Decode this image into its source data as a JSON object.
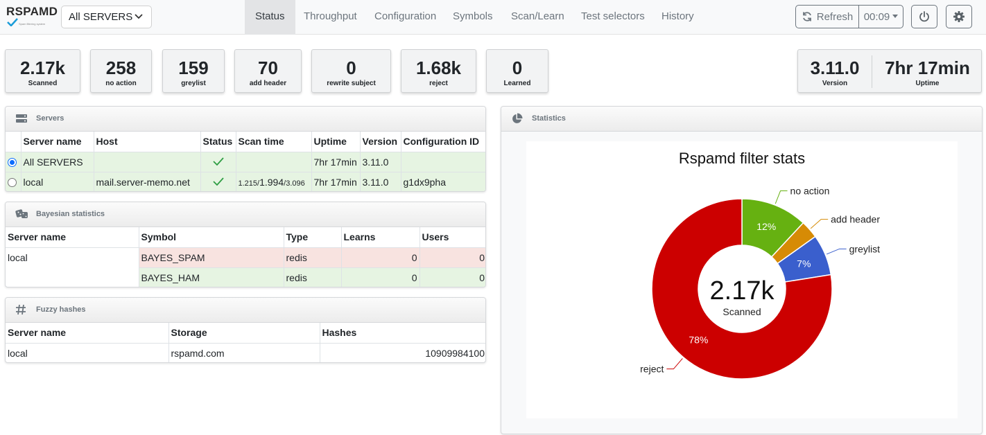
{
  "navbar": {
    "logo_text": "RSPAMD",
    "logo_subtitle": "Spam filtering system",
    "server_selector": "All SERVERS",
    "tabs": [
      {
        "label": "Status",
        "active": true
      },
      {
        "label": "Throughput",
        "active": false
      },
      {
        "label": "Configuration",
        "active": false
      },
      {
        "label": "Symbols",
        "active": false
      },
      {
        "label": "Scan/Learn",
        "active": false
      },
      {
        "label": "Test selectors",
        "active": false
      },
      {
        "label": "History",
        "active": false
      }
    ],
    "refresh_label": "Refresh",
    "timer_value": "00:09",
    "icons": [
      "refresh-icon",
      "caret-down-icon",
      "power-icon",
      "gear-icon"
    ]
  },
  "stats": [
    {
      "value": "2.17k",
      "label": "Scanned"
    },
    {
      "value": "258",
      "label": "no action"
    },
    {
      "value": "159",
      "label": "greylist"
    },
    {
      "value": "70",
      "label": "add header"
    },
    {
      "value": "0",
      "label": "rewrite subject"
    },
    {
      "value": "1.68k",
      "label": "reject"
    },
    {
      "value": "0",
      "label": "Learned"
    }
  ],
  "info": {
    "version_value": "3.11.0",
    "version_label": "Version",
    "uptime_value": "7hr 17min",
    "uptime_label": "Uptime"
  },
  "servers": {
    "title": "Servers",
    "headers": [
      "Server name",
      "Host",
      "Status",
      "Scan time",
      "Uptime",
      "Version",
      "Configuration ID"
    ],
    "rows": [
      {
        "name": "All SERVERS",
        "selected": true,
        "host": "",
        "status": "ok",
        "scan_min": "",
        "scan_avg": "",
        "scan_max": "",
        "uptime": "7hr 17min",
        "version": "3.11.0",
        "config_id": ""
      },
      {
        "name": "local",
        "selected": false,
        "host": "mail.server-memo.net",
        "status": "ok",
        "scan_min": "1.215/",
        "scan_avg": "1.994",
        "scan_max": "/3.096",
        "uptime": "7hr 17min",
        "version": "3.11.0",
        "config_id": "g1dx9pha"
      }
    ]
  },
  "bayes": {
    "title": "Bayesian statistics",
    "headers": [
      "Server name",
      "Symbol",
      "Type",
      "Learns",
      "Users"
    ],
    "server": "local",
    "rows": [
      {
        "symbol": "BAYES_SPAM",
        "type": "redis",
        "learns": "0",
        "users": "0"
      },
      {
        "symbol": "BAYES_HAM",
        "type": "redis",
        "learns": "0",
        "users": "0"
      }
    ]
  },
  "fuzzy": {
    "title": "Fuzzy hashes",
    "headers": [
      "Server name",
      "Storage",
      "Hashes"
    ],
    "rows": [
      {
        "server": "local",
        "storage": "rspamd.com",
        "hashes": "10909984100"
      }
    ]
  },
  "statistics": {
    "title": "Statistics"
  },
  "chart_data": {
    "type": "pie",
    "title": "Rspamd filter stats",
    "center_value": "2.17k",
    "center_label": "Scanned",
    "slices": [
      {
        "label": "no action",
        "value": 258,
        "percent_label": "12%",
        "color": "#66b111"
      },
      {
        "label": "add header",
        "value": 70,
        "percent_label": "",
        "color": "#d68b05"
      },
      {
        "label": "greylist",
        "value": 159,
        "percent_label": "7%",
        "color": "#3a5fcd"
      },
      {
        "label": "reject",
        "value": 1680,
        "percent_label": "78%",
        "color": "#cc0000"
      }
    ]
  }
}
